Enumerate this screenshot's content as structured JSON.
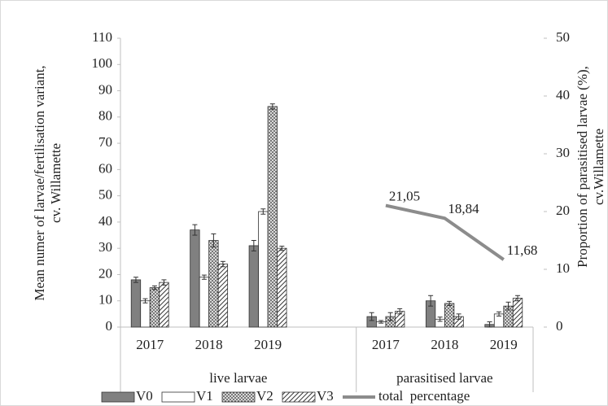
{
  "chart_data": {
    "type": "bar",
    "categories": [
      "2017",
      "2018",
      "2019",
      null,
      "2017",
      "2018",
      "2019"
    ],
    "groups": [
      {
        "label": "live larvae",
        "span": 4
      },
      {
        "label": "parasitised larvae",
        "span": 3
      }
    ],
    "ylabel": "Mean numer of larvae/fertilisation variant, cv. Willamette",
    "y2label": "Proportion of parasitised  larvae (%), cv.Willamette",
    "ylim": [
      0,
      110
    ],
    "yticks": [
      0,
      10,
      20,
      30,
      40,
      50,
      60,
      70,
      80,
      90,
      100,
      110
    ],
    "y2lim": [
      0,
      50
    ],
    "y2ticks": [
      0,
      10,
      20,
      30,
      40,
      50
    ],
    "series": [
      {
        "name": "V0",
        "color": "#808080",
        "pattern": "solid",
        "values": [
          18,
          37,
          31,
          null,
          4,
          10,
          1
        ],
        "errors": [
          1,
          2,
          2,
          null,
          1.5,
          2,
          1
        ]
      },
      {
        "name": "V1",
        "color": "#ffffff",
        "pattern": "solid",
        "values": [
          10,
          19,
          44,
          null,
          2,
          3,
          5
        ],
        "errors": [
          0.8,
          0.8,
          1,
          null,
          0.5,
          0.8,
          0.8
        ]
      },
      {
        "name": "V2",
        "color": "#bdbdbd",
        "pattern": "dots",
        "values": [
          15,
          33,
          84,
          null,
          4,
          9,
          8
        ],
        "errors": [
          0.7,
          2.5,
          1,
          null,
          1.5,
          0.8,
          1.5
        ]
      },
      {
        "name": "V3",
        "color": "#ffffff",
        "pattern": "hatch",
        "values": [
          17,
          24,
          30,
          null,
          6,
          4,
          11
        ],
        "errors": [
          1,
          1,
          0.8,
          null,
          1,
          1,
          1
        ]
      },
      {
        "name": "total  percentage",
        "type": "line",
        "axis": "y2",
        "color": "#8c8c8c",
        "values": [
          null,
          null,
          null,
          null,
          21.05,
          18.84,
          11.68
        ],
        "value_labels": [
          null,
          null,
          null,
          null,
          "21,05",
          "18,84",
          "11,68"
        ]
      }
    ]
  }
}
